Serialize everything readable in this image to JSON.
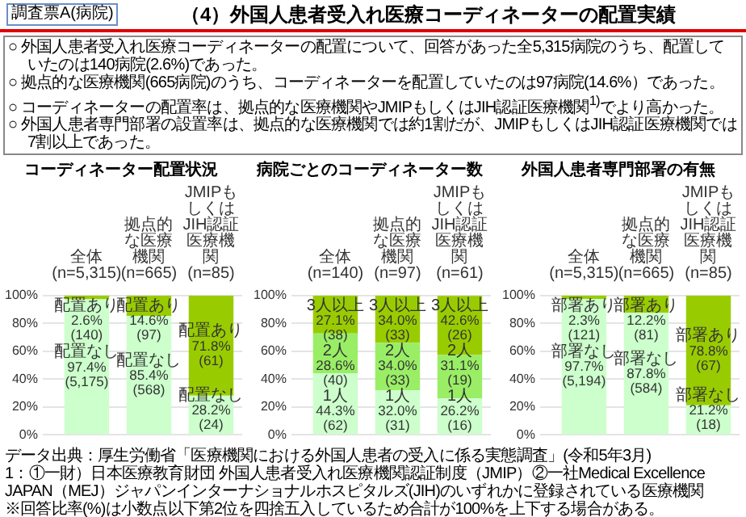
{
  "chart_data": [
    {
      "type": "other",
      "subtitle": "調査票A(病院)",
      "title": "（4）外国人患者受入れ医療コーディネーターの配置実績",
      "annotations": [
        "○ 外国人患者受入れ医療コーディネーターの配置について、回答があった全5,315病院のうち、配置していたのは140病院(2.6%)であった。",
        "○ 拠点的な医療機関(665病院)のうち、コーディネーターを配置していたのは97病院(14.6%）であった。",
        "○ コーディネーターの配置率は、拠点的な医療機関やJMIPもしくはJIH認証医療機関$^{1)}$でより高かった。",
        "○ 外国人患者専門部署の設置率は、拠点的な医療機関では約1割だが、JMIPもしくはJIH認証医療機関では7割以上であった。"
      ]
    },
    {
      "type": "bar",
      "title": "コーディネーター配置状況",
      "stacked": true,
      "grid": "y",
      "categories": [
        "全体\n(n=5,315)",
        "拠点的な医療機関\n(n=665)",
        "JMIPもしくは\nJIH認証医療機関\n(n=85)"
      ],
      "ylim": [
        0,
        100
      ],
      "yticks": [
        {
          "value": 0,
          "label": "0%"
        },
        {
          "value": 20,
          "label": "20%"
        },
        {
          "value": 40,
          "label": "40%"
        },
        {
          "value": 60,
          "label": "60%"
        },
        {
          "value": 80,
          "label": "80%"
        },
        {
          "value": 100,
          "label": "100%"
        }
      ],
      "series": [
        {
          "color": "#ccffcc",
          "values": [
            97.4,
            85.4,
            28.2
          ],
          "value_labels": [
            "配置なし\n97.4%\n(5,175)",
            "配置なし\n85.4%\n(568)",
            "配置なし\n28.2%\n(24)"
          ]
        },
        {
          "color": "#99cc00",
          "values": [
            2.6,
            14.6,
            71.8
          ],
          "value_labels": [
            "配置あり\n2.6%\n(140)",
            "配置あり\n14.6%\n(97)",
            "配置あり\n71.8%\n(61)"
          ]
        }
      ]
    },
    {
      "type": "bar",
      "title": "病院ごとのコーディネーター数",
      "stacked": true,
      "grid": "y",
      "categories": [
        "全体\n(n=140)",
        "拠点的な医療機関\n(n=97)",
        "JMIPもしくは\nJIH認証医療機関\n(n=61)"
      ],
      "ylim": [
        0,
        100
      ],
      "yticks": [
        {
          "value": 0,
          "label": "0%"
        },
        {
          "value": 20,
          "label": "20%"
        },
        {
          "value": 40,
          "label": "40%"
        },
        {
          "value": 60,
          "label": "60%"
        },
        {
          "value": 80,
          "label": "80%"
        },
        {
          "value": 100,
          "label": "100%"
        }
      ],
      "series": [
        {
          "color": "#ccffcc",
          "values": [
            44.3,
            32.0,
            26.2
          ],
          "value_labels": [
            "1人\n44.3%\n(62)",
            "1人\n32.0%\n(31)",
            "1人\n26.2%\n(16)"
          ]
        },
        {
          "color": "#99ee66",
          "values": [
            28.6,
            34.0,
            31.1
          ],
          "value_labels": [
            "2人\n28.6%\n(40)",
            "2人\n34.0%\n(33)",
            "2人\n31.1%\n(19)"
          ]
        },
        {
          "color": "#99cc00",
          "values": [
            27.1,
            34.0,
            42.6
          ],
          "value_labels": [
            "3人以上\n27.1%\n(38)",
            "3人以上\n34.0%\n(33)",
            "3人以上\n42.6%\n(26)"
          ]
        }
      ]
    },
    {
      "type": "bar",
      "title": "外国人患者専門部署の有無",
      "stacked": true,
      "grid": "y",
      "categories": [
        "全体\n(n=5,315)",
        "拠点的な医療機関\n(n=665)",
        "JMIPもしくは\nJIH認証医療機関\n(n=85)"
      ],
      "ylim": [
        0,
        100
      ],
      "yticks": [
        {
          "value": 0,
          "label": "0%"
        },
        {
          "value": 20,
          "label": "20%"
        },
        {
          "value": 40,
          "label": "40%"
        },
        {
          "value": 60,
          "label": "60%"
        },
        {
          "value": 80,
          "label": "80%"
        },
        {
          "value": 100,
          "label": "100%"
        }
      ],
      "series": [
        {
          "color": "#ccffcc",
          "values": [
            97.7,
            87.8,
            21.2
          ],
          "value_labels": [
            "部署なし\n97.7%\n(5,194)",
            "部署なし\n87.8%\n(584)",
            "部署なし\n21.2%\n(18)"
          ]
        },
        {
          "color": "#99cc00",
          "values": [
            2.3,
            12.2,
            78.8
          ],
          "value_labels": [
            "部署あり\n2.3%\n(121)",
            "部署あり\n12.2%\n(81)",
            "部署あり\n78.8%\n(67)"
          ]
        }
      ]
    },
    {
      "type": "other",
      "annotations": [
        "データ出典：厚生労働省「医療機関における外国人患者の受入に係る実態調査」(令和5年3月)",
        "1：①一財）日本医療教育財団 外国人患者受入れ医療機関認証制度（JMIP）②一社Medical Excellence JAPAN（MEJ）ジャパンインターナショナルホスピタルズ(JIH)のいずれかに登録されている医療機関",
        "※回答比率(%)は小数点以下第2位を四捨五入しているため合計が100%を上下する場合がある。"
      ]
    }
  ]
}
